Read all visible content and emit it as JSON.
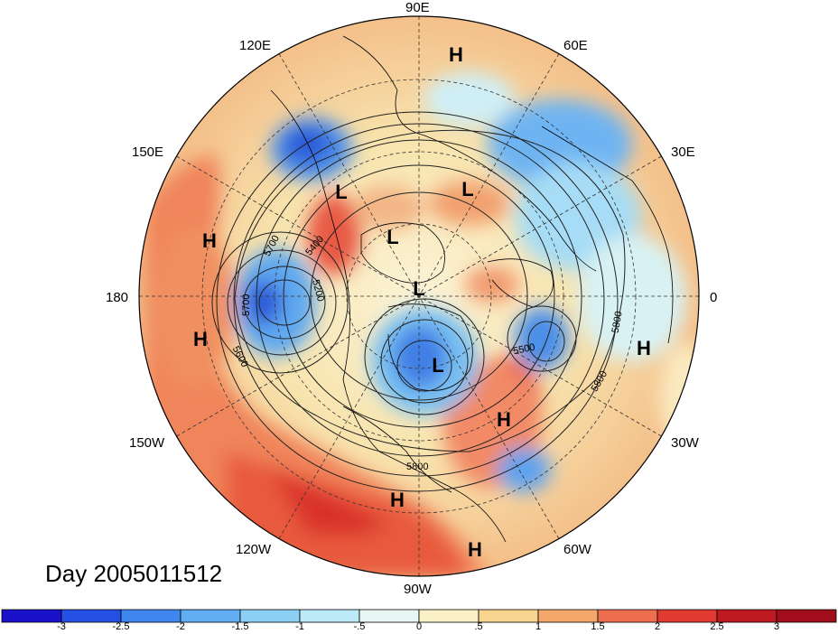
{
  "title": "Day 2005011512",
  "longitude_labels": {
    "lon_90E": "90E",
    "lon_120E": "120E",
    "lon_60E": "60E",
    "lon_150E": "150E",
    "lon_30E": "30E",
    "lon_180": "180",
    "lon_0": "0",
    "lon_150W": "150W",
    "lon_30W": "30W",
    "lon_120W": "120W",
    "lon_60W": "60W",
    "lon_90W": "90W"
  },
  "contour_labels": [
    "5700",
    "5400",
    "5200",
    "5700",
    "5600",
    "5500",
    "5800",
    "5800",
    "5800"
  ],
  "pressure_centers": [
    "H",
    "H",
    "H",
    "H",
    "H",
    "H",
    "H",
    "L",
    "L",
    "L",
    "L",
    "L"
  ],
  "colorbar": {
    "ticks": [
      "-3",
      "-2.5",
      "-2",
      "-1.5",
      "-1",
      "-.5",
      "0",
      ".5",
      "1",
      "1.5",
      "2",
      "2.5",
      "3"
    ],
    "colors": [
      "#1a12c9",
      "#2450e3",
      "#3f86ee",
      "#62aef2",
      "#8dd0f5",
      "#bdeaf7",
      "#e8f7f3",
      "#fbf1c6",
      "#f8d58f",
      "#f4a86c",
      "#ee6e4f",
      "#e03a31",
      "#bd1a22",
      "#a30e1c"
    ]
  }
}
